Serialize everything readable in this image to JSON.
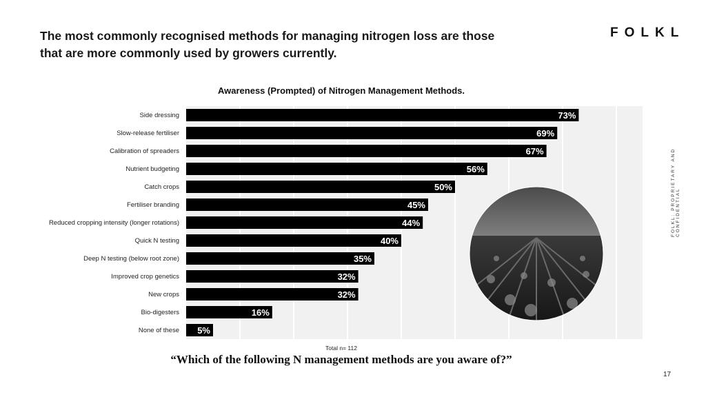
{
  "headline": "The most commonly recognised methods for managing nitrogen loss are those that are more commonly used by growers currently.",
  "logo": "FOLKL",
  "side_text": "FOLKL: PROPRIETARY AND CONFIDENTIAL",
  "total_label": "Total n= 112",
  "question": "“Which of the following N management methods are you aware of?”",
  "page_number": "17",
  "chart_data": {
    "type": "bar",
    "orientation": "horizontal",
    "title": "Awareness (Prompted) of Nitrogen Management Methods.",
    "categories": [
      "Side dressing",
      "Slow-release fertiliser",
      "Calibration of spreaders",
      "Nutrient budgeting",
      "Catch crops",
      "Fertiliser branding",
      "Reduced cropping intensity (longer rotations)",
      "Quick N testing",
      "Deep N testing (below root zone)",
      "Improved crop genetics",
      "New crops",
      "Bio-digesters",
      "None of these"
    ],
    "values": [
      73,
      69,
      67,
      56,
      50,
      45,
      44,
      40,
      35,
      32,
      32,
      16,
      5
    ],
    "value_labels": [
      "73%",
      "69%",
      "67%",
      "56%",
      "50%",
      "45%",
      "44%",
      "40%",
      "35%",
      "32%",
      "32%",
      "16%",
      "5%"
    ],
    "xlim": [
      0,
      85
    ],
    "grid": true,
    "colors": {
      "bar": "#000000",
      "label": "#ffffff",
      "plot_bg": "#f1f1f1",
      "grid": "#ffffff"
    }
  }
}
